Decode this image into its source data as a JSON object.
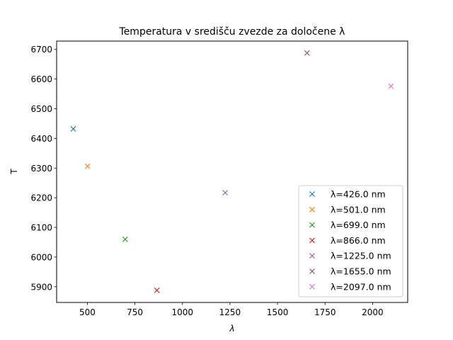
{
  "chart_data": {
    "type": "scatter",
    "title": "Temperatura v središču zvezde za določene λ",
    "xlabel": "λ",
    "ylabel": "T",
    "xlim": [
      338.45,
      2184.55
    ],
    "ylim": [
      5847.0,
      6728.0
    ],
    "x_ticks": [
      500,
      750,
      1000,
      1250,
      1500,
      1750,
      2000
    ],
    "y_ticks": [
      5900,
      6000,
      6100,
      6200,
      6300,
      6400,
      6500,
      6600,
      6700
    ],
    "grid": false,
    "legend_position": "lower right",
    "marker": "x",
    "series": [
      {
        "name": "λ=426.0 nm",
        "x": [
          426
        ],
        "y": [
          6432
        ],
        "color": "#1f77b4"
      },
      {
        "name": "λ=501.0 nm",
        "x": [
          501
        ],
        "y": [
          6306
        ],
        "color": "#ff7f0e"
      },
      {
        "name": "λ=699.0 nm",
        "x": [
          699
        ],
        "y": [
          6060
        ],
        "color": "#2ca02c"
      },
      {
        "name": "λ=866.0 nm",
        "x": [
          866
        ],
        "y": [
          5888
        ],
        "color": "#d62728"
      },
      {
        "name": "λ=1225.0 nm",
        "x": [
          1225
        ],
        "y": [
          6217
        ],
        "color": "#9467bd"
      },
      {
        "name": "λ=1655.0 nm",
        "x": [
          1655
        ],
        "y": [
          6688
        ],
        "color": "#8c564b"
      },
      {
        "name": "λ=2097.0 nm",
        "x": [
          2097
        ],
        "y": [
          6576
        ],
        "color": "#e377c2"
      }
    ]
  }
}
